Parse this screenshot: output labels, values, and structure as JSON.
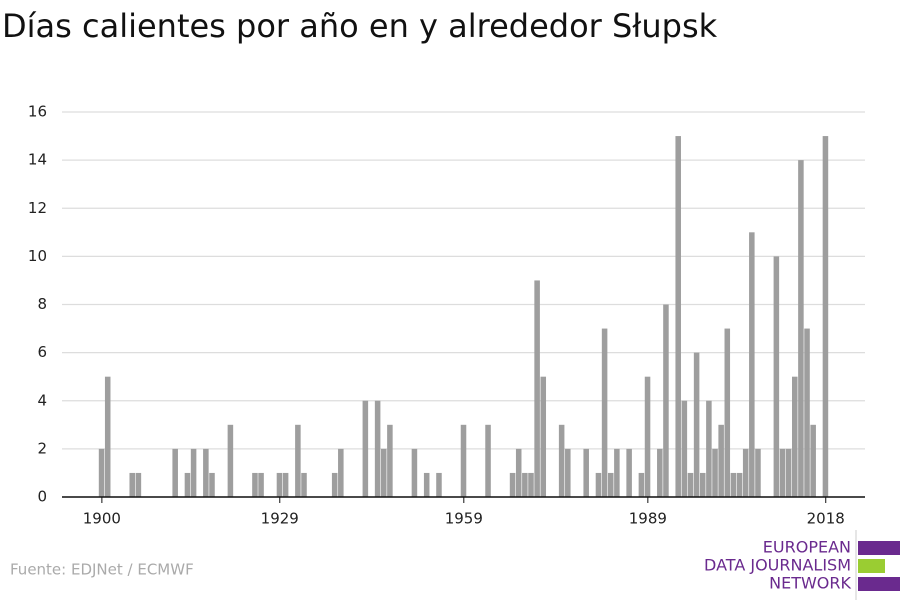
{
  "chart_data": {
    "type": "bar",
    "title": "Días calientes por año en y alrededor Słupsk",
    "source": "Fuente: EDJNet / ECMWF",
    "logo": [
      "EUROPEAN",
      "DATA JOURNALISM",
      "NETWORK"
    ],
    "color": "#9e9e9e",
    "x": [
      1900,
      1901,
      1905,
      1906,
      1912,
      1914,
      1915,
      1917,
      1918,
      1921,
      1925,
      1926,
      1929,
      1930,
      1932,
      1933,
      1938,
      1939,
      1943,
      1945,
      1946,
      1947,
      1951,
      1953,
      1955,
      1959,
      1963,
      1967,
      1968,
      1969,
      1970,
      1971,
      1972,
      1975,
      1976,
      1979,
      1981,
      1982,
      1983,
      1984,
      1986,
      1988,
      1989,
      1991,
      1992,
      1994,
      1995,
      1996,
      1997,
      1998,
      1999,
      2000,
      2001,
      2002,
      2003,
      2004,
      2005,
      2006,
      2007,
      2010,
      2011,
      2012,
      2013,
      2014,
      2015,
      2016,
      2018
    ],
    "values": [
      2,
      5,
      1,
      1,
      2,
      1,
      2,
      2,
      1,
      3,
      1,
      1,
      1,
      1,
      3,
      1,
      1,
      2,
      4,
      4,
      2,
      3,
      2,
      1,
      1,
      3,
      3,
      1,
      2,
      1,
      1,
      9,
      5,
      3,
      2,
      2,
      1,
      7,
      1,
      2,
      2,
      1,
      5,
      2,
      8,
      15,
      4,
      1,
      6,
      1,
      4,
      2,
      3,
      7,
      1,
      1,
      2,
      11,
      2,
      10,
      2,
      2,
      5,
      14,
      7,
      3,
      15
    ],
    "xlim": [
      1893.5,
      2024.4
    ],
    "xticks": [
      1900,
      1929,
      1959,
      1989,
      2018
    ],
    "ylim": [
      0,
      16
    ],
    "yticks": [
      0,
      2,
      4,
      6,
      8,
      10,
      12,
      14,
      16
    ],
    "grid": true
  }
}
